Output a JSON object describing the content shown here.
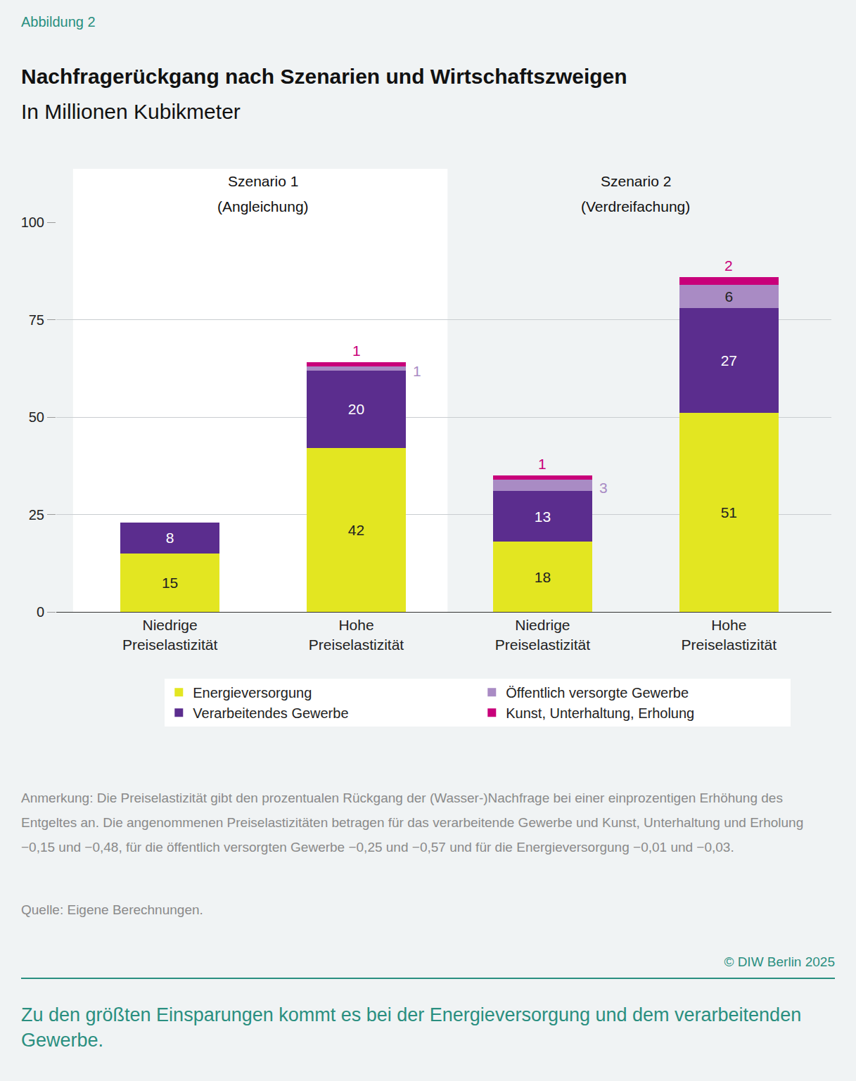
{
  "figure_label": "Abbildung 2",
  "chart_data": {
    "type": "bar",
    "stacked": true,
    "title": "Nachfragerückgang nach Szenarien und Wirtschaftszweigen",
    "subtitle": "In Millionen Kubikmeter",
    "groups": [
      {
        "title": "Szenario 1",
        "subtitle": "(Angleichung)"
      },
      {
        "title": "Szenario 2",
        "subtitle": "(Verdreifachung)"
      }
    ],
    "categories": [
      "Niedrige Preiselastizität",
      "Hohe Preiselastizität",
      "Niedrige Preiselastizität",
      "Hohe Preiselastizität"
    ],
    "series": [
      {
        "name": "Energieversorgung",
        "color": "#e3e621",
        "values": [
          15,
          42,
          18,
          51
        ]
      },
      {
        "name": "Verarbeitendes Gewerbe",
        "color": "#5b2d8e",
        "values": [
          8,
          20,
          13,
          27
        ]
      },
      {
        "name": "Öffentlich versorgte Gewerbe",
        "color": "#a98bc4",
        "values": [
          null,
          1,
          3,
          6
        ]
      },
      {
        "name": "Kunst, Unterhaltung, Erholung",
        "color": "#c8007a",
        "values": [
          null,
          1,
          1,
          2
        ]
      }
    ],
    "ylim": [
      0,
      100
    ],
    "yticks": [
      0,
      25,
      50,
      75,
      100
    ],
    "grid": true,
    "data_labels": true,
    "legend": "bottom"
  },
  "note": "Anmerkung: Die Preiselastizität gibt den prozentualen Rückgang der (Wasser-)Nachfrage bei einer einprozentigen Erhöhung des Entgeltes an. Die angenommenen Preiselastizitäten betragen für das verarbeitende Gewerbe und Kunst, Unterhaltung und Erholung −0,15 und −0,48, für die öffentlich versorgten Gewerbe −0,25 und −0,57 und für die Energieversorgung −0,01 und −0,03.",
  "source": "Quelle: Eigene Berechnungen.",
  "copyright": "© DIW Berlin 2025",
  "caption": "Zu den größten Einsparungen kommt es bei der Energieversorgung und dem verarbeitenden Gewerbe."
}
